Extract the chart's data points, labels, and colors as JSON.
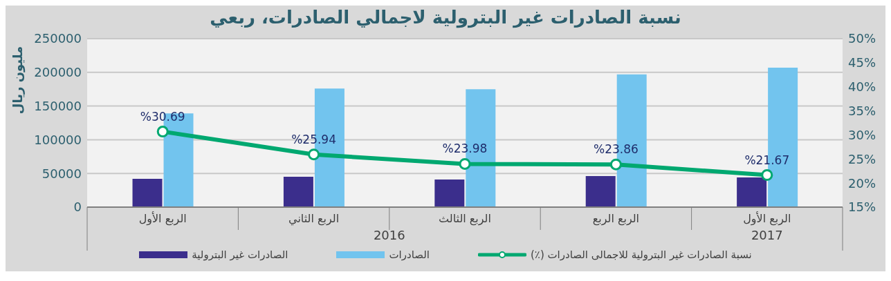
{
  "chart_data": {
    "type": "bar",
    "title": "نسبة الصادرات غير البترولية لاجمالي الصادرات، ربعي",
    "ylabel": "مليون ريال",
    "categories": [
      "الربع الأول",
      "الربع الثاني",
      "الربع الثالث",
      "الربع الربع",
      "الربع الأول"
    ],
    "annotations": [
      "2016",
      "2017"
    ],
    "series": [
      {
        "name": "الصادرات غير البترولية",
        "color": "#3b2e8c",
        "values": [
          42000,
          45000,
          41000,
          46000,
          44000
        ]
      },
      {
        "name": "الصادرات",
        "color": "#72c4ee",
        "values": [
          139000,
          176000,
          175000,
          197000,
          207000
        ]
      },
      {
        "name": "نسبة الصادرات غير البترولية للاجمالى الصادرات (٪)",
        "type": "line",
        "axis": "y2",
        "color": "#00a870",
        "values": [
          30.69,
          25.94,
          23.98,
          23.86,
          21.67
        ],
        "value_labels": [
          "%30.69",
          "%25.94",
          "%23.98",
          "%23.86",
          "%21.67"
        ]
      }
    ],
    "ylim": [
      0,
      250000
    ],
    "yticks": [
      0,
      50000,
      100000,
      150000,
      200000,
      250000
    ],
    "y2lim": [
      15,
      50
    ],
    "y2ticks": [
      {
        "value": 15,
        "label": "15%"
      },
      {
        "value": 20,
        "label": "20%"
      },
      {
        "value": 25,
        "label": "25%"
      },
      {
        "value": 30,
        "label": "30%"
      },
      {
        "value": 35,
        "label": "35%"
      },
      {
        "value": 40,
        "label": "40%"
      },
      {
        "value": 45,
        "label": "45%"
      },
      {
        "value": 50,
        "label": "50%"
      }
    ],
    "grid": "y",
    "legend": "bottom",
    "marker": "circle"
  }
}
